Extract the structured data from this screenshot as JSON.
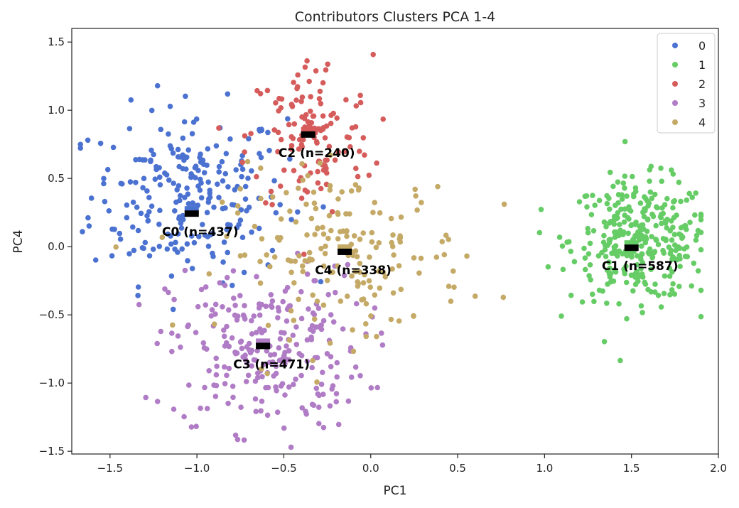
{
  "chart_data": {
    "type": "scatter",
    "title": "Contributors Clusters PCA 1-4",
    "xlabel": "PC1",
    "ylabel": "PC4",
    "xlim": [
      -1.72,
      2.0
    ],
    "ylim": [
      -1.52,
      1.6
    ],
    "xticks": [
      -1.5,
      -1.0,
      -0.5,
      0.0,
      0.5,
      1.0,
      1.5,
      2.0
    ],
    "xtick_labels": [
      "−1.5",
      "−1.0",
      "−0.5",
      "0.0",
      "0.5",
      "1.0",
      "1.5",
      "2.0"
    ],
    "yticks": [
      -1.5,
      -1.0,
      -0.5,
      0.0,
      0.5,
      1.0,
      1.5
    ],
    "ytick_labels": [
      "−1.5",
      "−1.0",
      "−0.5",
      "0.0",
      "0.5",
      "1.0",
      "1.5"
    ],
    "grid": false,
    "legend_position": "top-right",
    "series": [
      {
        "name": "0",
        "color": "#4c72d1",
        "distribution": {
          "center": [
            -1.05,
            0.38
          ],
          "spread": [
            0.28,
            0.32
          ],
          "count": 437
        }
      },
      {
        "name": "1",
        "color": "#66cc66",
        "distribution": {
          "center": [
            1.55,
            0.05
          ],
          "spread": [
            0.2,
            0.22
          ],
          "count": 587
        }
      },
      {
        "name": "2",
        "color": "#d65c5c",
        "distribution": {
          "center": [
            -0.35,
            0.8
          ],
          "spread": [
            0.18,
            0.3
          ],
          "count": 240
        }
      },
      {
        "name": "3",
        "color": "#b07cc6",
        "distribution": {
          "center": [
            -0.6,
            -0.75
          ],
          "spread": [
            0.28,
            0.3
          ],
          "count": 471
        }
      },
      {
        "name": "4",
        "color": "#c4aa66",
        "distribution": {
          "center": [
            -0.15,
            -0.05
          ],
          "spread": [
            0.35,
            0.3
          ],
          "count": 338
        }
      }
    ],
    "centroids": [
      {
        "cluster": "0",
        "x": -1.03,
        "y": 0.25,
        "label": "C0 (n=437)"
      },
      {
        "cluster": "1",
        "x": 1.5,
        "y": 0.0,
        "label": "C1 (n=587)"
      },
      {
        "cluster": "2",
        "x": -0.36,
        "y": 0.83,
        "label": "C2 (n=240)"
      },
      {
        "cluster": "3",
        "x": -0.62,
        "y": -0.72,
        "label": "C3 (n=471)"
      },
      {
        "cluster": "4",
        "x": -0.15,
        "y": -0.03,
        "label": "C4 (n=338)"
      }
    ]
  }
}
